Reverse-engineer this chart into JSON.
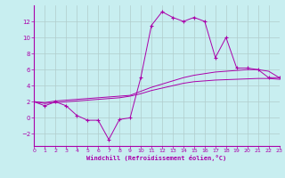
{
  "xlabel": "Windchill (Refroidissement éolien,°C)",
  "bg_color": "#c8eef0",
  "grid_color": "#b0cccc",
  "line_color": "#aa00aa",
  "xlim": [
    0,
    23
  ],
  "ylim": [
    -3.5,
    14
  ],
  "xticks": [
    0,
    1,
    2,
    3,
    4,
    5,
    6,
    7,
    8,
    9,
    10,
    11,
    12,
    13,
    14,
    15,
    16,
    17,
    18,
    19,
    20,
    21,
    22,
    23
  ],
  "yticks": [
    -2,
    0,
    2,
    4,
    6,
    8,
    10,
    12
  ],
  "line1_x": [
    0,
    1,
    2,
    3,
    4,
    5,
    6,
    7,
    8,
    9,
    10,
    11,
    12,
    13,
    14,
    15,
    16,
    17,
    18,
    19,
    20,
    21,
    22,
    23
  ],
  "line1_y": [
    2.0,
    1.5,
    2.0,
    1.5,
    0.3,
    -0.3,
    -0.3,
    -2.7,
    -0.2,
    0.0,
    5.0,
    11.5,
    13.2,
    12.5,
    12.0,
    12.5,
    12.0,
    7.5,
    10.0,
    6.2,
    6.2,
    6.0,
    5.0,
    5.0
  ],
  "line2_x": [
    0,
    1,
    2,
    3,
    4,
    5,
    6,
    7,
    8,
    9,
    10,
    11,
    12,
    13,
    14,
    15,
    16,
    17,
    18,
    19,
    20,
    21,
    22,
    23
  ],
  "line2_y": [
    2.0,
    1.9,
    2.1,
    2.2,
    2.3,
    2.4,
    2.5,
    2.6,
    2.7,
    2.8,
    3.3,
    3.8,
    4.2,
    4.6,
    5.0,
    5.3,
    5.5,
    5.7,
    5.8,
    5.9,
    6.0,
    6.0,
    5.8,
    5.0
  ],
  "line3_x": [
    0,
    1,
    2,
    3,
    4,
    5,
    6,
    7,
    8,
    9,
    10,
    11,
    12,
    13,
    14,
    15,
    16,
    17,
    18,
    19,
    20,
    21,
    22,
    23
  ],
  "line3_y": [
    2.0,
    1.8,
    1.9,
    2.0,
    2.1,
    2.2,
    2.3,
    2.4,
    2.5,
    2.7,
    3.0,
    3.4,
    3.7,
    4.0,
    4.3,
    4.5,
    4.6,
    4.7,
    4.75,
    4.8,
    4.85,
    4.9,
    4.9,
    4.8
  ]
}
